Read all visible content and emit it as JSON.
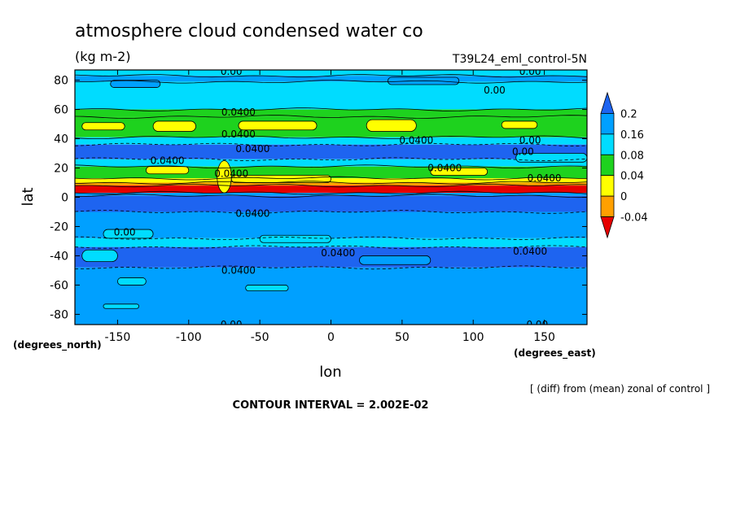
{
  "chart_data": {
    "type": "heatmap",
    "title": "atmosphere cloud condensed water co",
    "units": "(kg m-2)",
    "run_label": "T39L24_eml_control-5N",
    "xlabel": "lon",
    "ylabel": "lat",
    "x_units_label": "(degrees_east)",
    "y_units_label": "(degrees_north)",
    "xlim": [
      -180,
      180
    ],
    "ylim": [
      -87,
      87
    ],
    "x_ticks": [
      -150,
      -100,
      -50,
      0,
      50,
      100,
      150
    ],
    "x_tick_labels": [
      "-150",
      "-100",
      "-50",
      "0",
      "50",
      "100",
      "150"
    ],
    "y_ticks": [
      -80,
      -60,
      -40,
      -20,
      0,
      20,
      40,
      60,
      80
    ],
    "y_tick_labels": [
      "-80",
      "-60",
      "-40",
      "-20",
      "0",
      "20",
      "40",
      "60",
      "80"
    ],
    "colorbar": {
      "levels": [
        -0.04,
        0,
        0.04,
        0.08,
        0.16,
        0.2
      ],
      "labels": [
        "-0.04",
        "0",
        "0.04",
        "0.08",
        "0.16",
        "0.2"
      ],
      "colors": [
        "#1e64f0",
        "#00a0ff",
        "#00dcff",
        "#1ed21e",
        "#ffff00",
        "#ffa000",
        "#e60000"
      ]
    },
    "zonal_bands": [
      {
        "lat": [
          83,
          87
        ],
        "bin": 2
      },
      {
        "lat": [
          79,
          83
        ],
        "bin": 1
      },
      {
        "lat": [
          60,
          79
        ],
        "bin": 2
      },
      {
        "lat": [
          55,
          60
        ],
        "bin": 3
      },
      {
        "lat": [
          41,
          55
        ],
        "bin": 3
      },
      {
        "lat": [
          36,
          41
        ],
        "bin": 2
      },
      {
        "lat": [
          26,
          36
        ],
        "bin": 0
      },
      {
        "lat": [
          21,
          26
        ],
        "bin": 2
      },
      {
        "lat": [
          13,
          21
        ],
        "bin": 3
      },
      {
        "lat": [
          10,
          13
        ],
        "bin": 4
      },
      {
        "lat": [
          8,
          10
        ],
        "bin": 5
      },
      {
        "lat": [
          3,
          8
        ],
        "bin": 6
      },
      {
        "lat": [
          1,
          3
        ],
        "bin": 1
      },
      {
        "lat": [
          -10,
          1
        ],
        "bin": 0
      },
      {
        "lat": [
          -28,
          -10
        ],
        "bin": 1
      },
      {
        "lat": [
          -34,
          -28
        ],
        "bin": 2
      },
      {
        "lat": [
          -48,
          -34
        ],
        "bin": 0
      },
      {
        "lat": [
          -87,
          -48
        ],
        "bin": 1
      }
    ],
    "patches": [
      {
        "lon": [
          -155,
          -120
        ],
        "lat": [
          75,
          80
        ],
        "bin": 1
      },
      {
        "lon": [
          40,
          90
        ],
        "lat": [
          77,
          82
        ],
        "bin": 1
      },
      {
        "lon": [
          -175,
          -145
        ],
        "lat": [
          46,
          51
        ],
        "bin": 4
      },
      {
        "lon": [
          -125,
          -95
        ],
        "lat": [
          45,
          52
        ],
        "bin": 4
      },
      {
        "lon": [
          -65,
          -10
        ],
        "lat": [
          46,
          52
        ],
        "bin": 4
      },
      {
        "lon": [
          25,
          60
        ],
        "lat": [
          45,
          53
        ],
        "bin": 4
      },
      {
        "lon": [
          120,
          145
        ],
        "lat": [
          47,
          52
        ],
        "bin": 4
      },
      {
        "lon": [
          -130,
          -100
        ],
        "lat": [
          16,
          21
        ],
        "bin": 4
      },
      {
        "lon": [
          70,
          110
        ],
        "lat": [
          15,
          20
        ],
        "bin": 4
      },
      {
        "lon": [
          -70,
          0
        ],
        "lat": [
          10,
          15
        ],
        "bin": 4
      },
      {
        "lon": [
          -80,
          -70
        ],
        "lat": [
          3,
          25
        ],
        "bin": 4
      },
      {
        "lon": [
          130,
          180
        ],
        "lat": [
          24,
          30
        ],
        "bin": 2
      },
      {
        "lon": [
          -160,
          -125
        ],
        "lat": [
          -28,
          -22
        ],
        "bin": 2
      },
      {
        "lon": [
          -50,
          0
        ],
        "lat": [
          -31,
          -26
        ],
        "bin": 2
      },
      {
        "lon": [
          -175,
          -150
        ],
        "lat": [
          -44,
          -36
        ],
        "bin": 2
      },
      {
        "lon": [
          20,
          70
        ],
        "lat": [
          -46,
          -40
        ],
        "bin": 1
      },
      {
        "lon": [
          -150,
          -130
        ],
        "lat": [
          -60,
          -55
        ],
        "bin": 2
      },
      {
        "lon": [
          -60,
          -30
        ],
        "lat": [
          -64,
          -60
        ],
        "bin": 2
      },
      {
        "lon": [
          -160,
          -135
        ],
        "lat": [
          -76,
          -73
        ],
        "bin": 2
      }
    ],
    "contour_labels": [
      {
        "text": "0.00",
        "lon": -70,
        "lat": 86
      },
      {
        "text": "0.00",
        "lon": 140,
        "lat": 86
      },
      {
        "text": "0.00",
        "lon": 115,
        "lat": 73
      },
      {
        "text": "0.0400",
        "lon": -65,
        "lat": 58
      },
      {
        "text": "0.0400",
        "lon": -65,
        "lat": 43
      },
      {
        "text": "0.0400",
        "lon": 60,
        "lat": 39
      },
      {
        "text": "0.00",
        "lon": 140,
        "lat": 39
      },
      {
        "text": "0.0400",
        "lon": -55,
        "lat": 33
      },
      {
        "text": "0.00",
        "lon": 135,
        "lat": 31
      },
      {
        "text": "0.0400",
        "lon": -115,
        "lat": 25
      },
      {
        "text": "0.0400",
        "lon": 80,
        "lat": 20
      },
      {
        "text": "0.0400",
        "lon": -70,
        "lat": 16
      },
      {
        "text": "0.0400",
        "lon": 150,
        "lat": 13
      },
      {
        "text": "0.0400",
        "lon": -55,
        "lat": -11
      },
      {
        "text": "0.00",
        "lon": -145,
        "lat": -24
      },
      {
        "text": "0.0400",
        "lon": 5,
        "lat": -38
      },
      {
        "text": "0.0400",
        "lon": 140,
        "lat": -37
      },
      {
        "text": "0.0400",
        "lon": -65,
        "lat": -50
      },
      {
        "text": "0.00",
        "lon": -70,
        "lat": -87
      },
      {
        "text": "0.00",
        "lon": 145,
        "lat": -87
      }
    ]
  },
  "footer": {
    "diff_note": "[ (diff) from (mean) zonal of control ]",
    "contour_interval": "CONTOUR INTERVAL = 2.002E-02"
  }
}
